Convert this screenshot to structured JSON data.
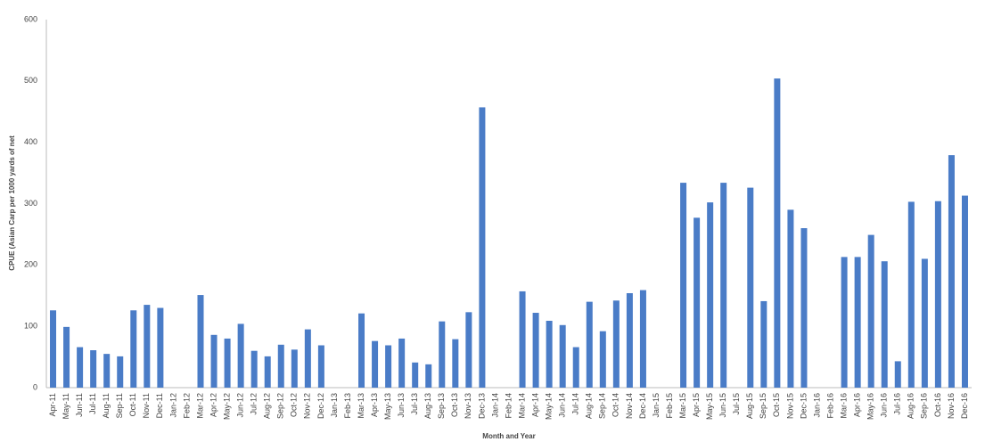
{
  "chart_data": {
    "type": "bar",
    "y_label": "CPUE (Asian Carp per 1000 yards of net",
    "x_label": "Month and Year",
    "categories": [
      "Apr-11",
      "May-11",
      "Jun-11",
      "Jul-11",
      "Aug-11",
      "Sep-11",
      "Oct-11",
      "Nov-11",
      "Dec-11",
      "Jan-12",
      "Feb-12",
      "Mar-12",
      "Apr-12",
      "May-12",
      "Jun-12",
      "Jul-12",
      "Aug-12",
      "Sep-12",
      "Oct-12",
      "Nov-12",
      "Dec-12",
      "Jan-13",
      "Feb-13",
      "Mar-13",
      "Apr-13",
      "May-13",
      "Jun-13",
      "Jul-13",
      "Aug-13",
      "Sep-13",
      "Oct-13",
      "Nov-13",
      "Dec-13",
      "Jan-14",
      "Feb-14",
      "Mar-14",
      "Apr-14",
      "May-14",
      "Jun-14",
      "Jul-14",
      "Aug-14",
      "Sep-14",
      "Oct-14",
      "Nov-14",
      "Dec-14",
      "Jan-15",
      "Feb-15",
      "Mar-15",
      "Apr-15",
      "May-15",
      "Jun-15",
      "Jul-15",
      "Aug-15",
      "Sep-15",
      "Oct-15",
      "Nov-15",
      "Dec-15",
      "Jan-16",
      "Feb-16",
      "Mar-16",
      "Apr-16",
      "May-16",
      "Jun-16",
      "Jul-16",
      "Aug-16",
      "Sep-16",
      "Oct-16",
      "Nov-16",
      "Dec-16"
    ],
    "values": [
      126,
      99,
      66,
      61,
      55,
      51,
      126,
      135,
      130,
      null,
      null,
      151,
      86,
      80,
      104,
      60,
      51,
      70,
      62,
      95,
      69,
      null,
      null,
      121,
      76,
      69,
      80,
      41,
      38,
      108,
      79,
      123,
      457,
      null,
      null,
      157,
      122,
      109,
      102,
      66,
      140,
      92,
      142,
      154,
      159,
      null,
      null,
      334,
      277,
      302,
      334,
      null,
      326,
      141,
      504,
      290,
      260,
      null,
      null,
      213,
      213,
      249,
      206,
      43,
      303,
      210,
      304,
      379,
      313
    ],
    "color": "#4a7cc7",
    "ylim": [
      0,
      600
    ],
    "yticks": [
      0,
      100,
      200,
      300,
      400,
      500,
      600
    ],
    "grid": false
  }
}
